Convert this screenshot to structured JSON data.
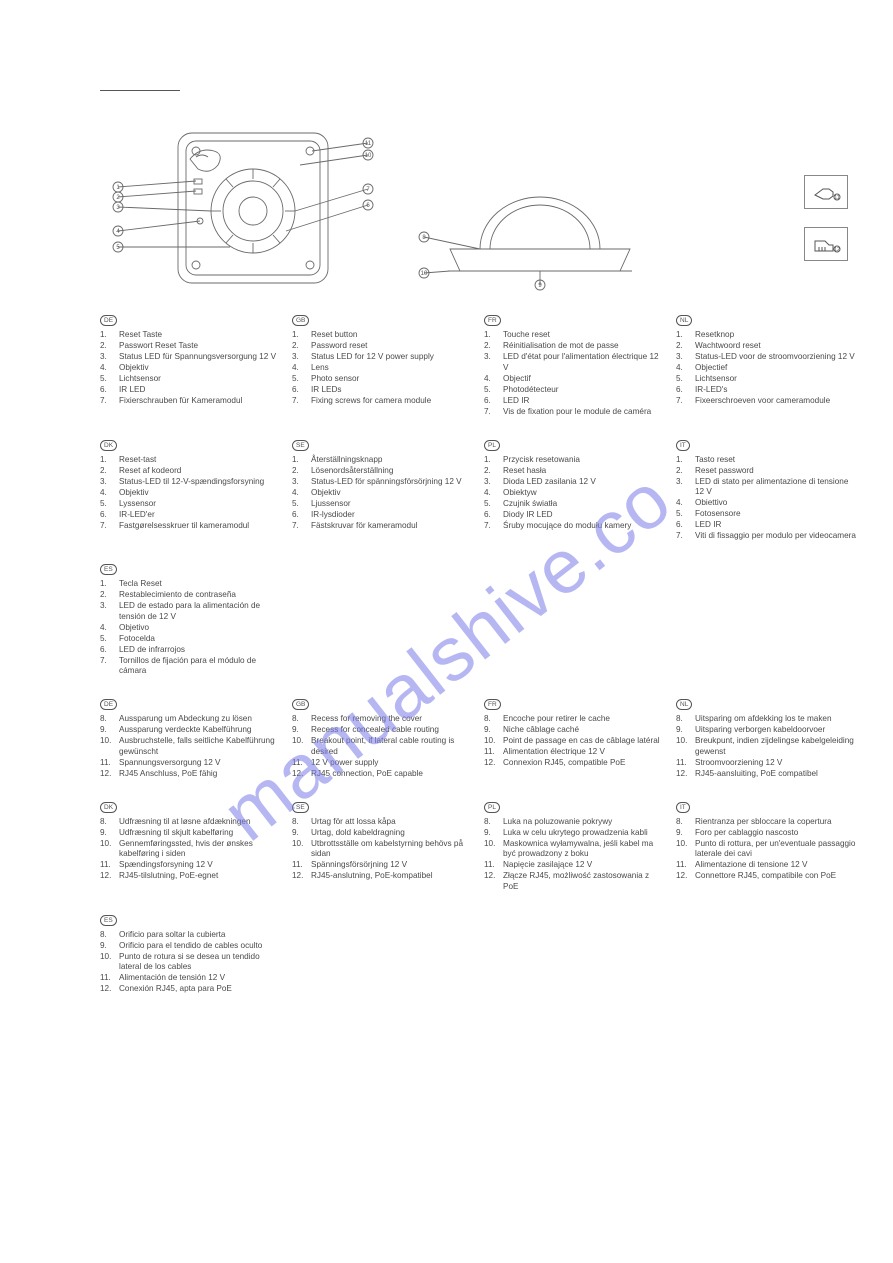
{
  "watermark_text": "manualshive.co",
  "diagram_labels": {
    "left_callouts": [
      "1",
      "2",
      "3",
      "4",
      "5",
      "6",
      "7"
    ],
    "right_callouts": [
      "8",
      "9",
      "10",
      "11",
      "12"
    ]
  },
  "groups": [
    {
      "row": 1,
      "blocks": [
        {
          "code": "DE",
          "start": 1,
          "items": [
            "Reset Taste",
            "Passwort Reset Taste",
            "Status LED für Spannungs­versorgung 12 V",
            "Objektiv",
            "Lichtsensor",
            "IR LED",
            "Fixierschrauben für Kameramodul"
          ]
        },
        {
          "code": "GB",
          "start": 1,
          "items": [
            "Reset button",
            "Password reset",
            "Status LED for 12 V power supply",
            "Lens",
            "Photo sensor",
            "IR LEDs",
            "Fixing screws for camera module"
          ]
        },
        {
          "code": "FR",
          "start": 1,
          "items": [
            "Touche reset",
            "Réinitialisation de mot de passe",
            "LED d'état pour l'alimentation électrique 12 V",
            "Objectif",
            "Photodétecteur",
            "LED IR",
            "Vis de fixation pour le module de caméra"
          ]
        },
        {
          "code": "NL",
          "start": 1,
          "items": [
            "Resetknop",
            "Wachtwoord reset",
            "Status-LED voor de stroomvoorziening 12 V",
            "Objectief",
            "Lichtsensor",
            "IR-LED's",
            "Fixeerschroeven voor cameramodule"
          ]
        }
      ]
    },
    {
      "row": 2,
      "blocks": [
        {
          "code": "DK",
          "start": 1,
          "items": [
            "Reset-tast",
            "Reset af kodeord",
            "Status-LED til 12-V-spændingsforsyning",
            "Objektiv",
            "Lyssensor",
            "IR-LED'er",
            "Fastgørelsesskruer til kameramodul"
          ]
        },
        {
          "code": "SE",
          "start": 1,
          "items": [
            "Återställningsknapp",
            "Lösenordsåterställning",
            "Status-LED för spänningsförsörjning 12 V",
            "Objektiv",
            "Ljussensor",
            "IR-lysdioder",
            "Fästskruvar för kameramodul"
          ]
        },
        {
          "code": "PL",
          "start": 1,
          "items": [
            "Przycisk resetowania",
            "Reset hasła",
            "Dioda LED zasilania 12 V",
            "Obiektyw",
            "Czujnik światła",
            "Diody IR LED",
            "Śruby mocujące do modułu kamery"
          ]
        },
        {
          "code": "IT",
          "start": 1,
          "items": [
            "Tasto reset",
            "Reset password",
            "LED di stato per alimentazione di tensione 12 V",
            "Obiettivo",
            "Fotosensore",
            "LED IR",
            "Viti di fissaggio per modulo per videocamera"
          ]
        }
      ]
    },
    {
      "row": 3,
      "blocks": [
        {
          "code": "ES",
          "start": 1,
          "items": [
            "Tecla Reset",
            "Restablecimiento de contraseña",
            "LED de estado para la alimentación de tensión de 12 V",
            "Objetivo",
            "Fotocelda",
            "LED de infrarrojos",
            "Tornillos de fijación para el módulo de cámara"
          ]
        },
        null,
        null,
        null
      ]
    },
    {
      "row": 4,
      "blocks": [
        {
          "code": "DE",
          "start": 8,
          "items": [
            "Aussparung um Abdeckung zu lösen",
            "Aussparung verdeckte Kabelführung",
            "Ausbruchstelle, falls seitliche Kabelführung gewünscht",
            "Spannungsversorgung 12 V",
            "RJ45 Anschluss, PoE fähig"
          ]
        },
        {
          "code": "GB",
          "start": 8,
          "items": [
            "Recess for removing the cover",
            "Recess for concealed cable routing",
            "Breakout point, if lateral cable routing is desired",
            "12 V power supply",
            "RJ45 connection, PoE capable"
          ]
        },
        {
          "code": "FR",
          "start": 8,
          "items": [
            "Encoche pour retirer le cache",
            "Niche câblage caché",
            "Point de passage en cas de câblage latéral",
            "Alimentation électrique 12 V",
            "Connexion RJ45, compatible PoE"
          ]
        },
        {
          "code": "NL",
          "start": 8,
          "items": [
            "Uitsparing om afdekking los te maken",
            "Uitsparing verborgen kabeldoorvoer",
            "Breukpunt, indien zijdelingse kabelgeleiding gewenst",
            "Stroomvoorziening 12 V",
            "RJ45-aansluiting, PoE compatibel"
          ]
        }
      ]
    },
    {
      "row": 5,
      "blocks": [
        {
          "code": "DK",
          "start": 8,
          "items": [
            "Udfræsning til at løsne afdækningen",
            "Udfræsning til skjult kabelføring",
            "Gennemføringssted, hvis der ønskes kabelføring i siden",
            "Spændingsforsyning 12 V",
            "RJ45-tilslutning, PoE-egnet"
          ]
        },
        {
          "code": "SE",
          "start": 8,
          "items": [
            "Urtag för att lossa kåpa",
            "Urtag, dold kabeldragning",
            "Utbrottsställe om kabelstyrning behövs på sidan",
            "Spänningsförsörjning 12 V",
            "RJ45-anslutning, PoE-kompatibel"
          ]
        },
        {
          "code": "PL",
          "start": 8,
          "items": [
            "Luka na poluzowanie pokrywy",
            "Luka w celu ukrytego prowadzenia kabli",
            "Maskownica wyłamywalna, jeśli kabel ma być prowadzony z boku",
            "Napięcie zasilające 12 V",
            "Złącze RJ45, możliwość zastosowania z PoE"
          ]
        },
        {
          "code": "IT",
          "start": 8,
          "items": [
            "Rientranza per sbloccare la copertura",
            "Foro per cablaggio nascosto",
            "Punto di rottura, per un'eventuale passaggio laterale dei cavi",
            "Alimentazione di tensione 12 V",
            "Connettore RJ45, compatibile con PoE"
          ]
        }
      ]
    },
    {
      "row": 6,
      "blocks": [
        {
          "code": "ES",
          "start": 8,
          "items": [
            "Orificio para soltar la cubierta",
            "Orificio para el tendido de cables oculto",
            "Punto de rotura si se desea un tendido lateral de los cables",
            "Alimentación de tensión 12 V",
            "Conexión RJ45, apta para PoE"
          ]
        },
        null,
        null,
        null
      ]
    }
  ],
  "colors": {
    "text": "#4a4a4a",
    "stroke": "#6a6a6a",
    "watermark": "#7b7de8",
    "background": "#ffffff"
  }
}
